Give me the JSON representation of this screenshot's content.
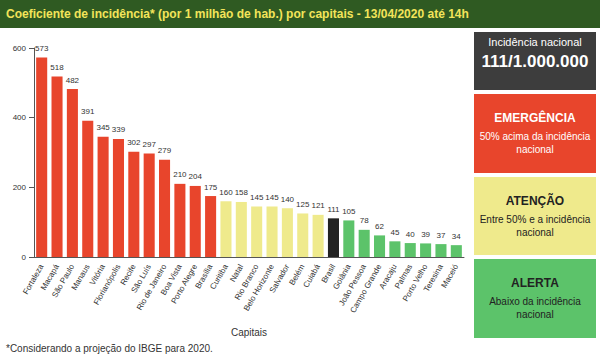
{
  "chart_data": {
    "type": "bar",
    "title": "Coeficiente de incidência* (por 1 milhão de hab.) por capitais - 13/04/2020 até 14h",
    "xlabel": "Capitais",
    "categories": [
      "Fortaleza",
      "Macapá",
      "São Paulo",
      "Manaus",
      "Vitória",
      "Florianópolis",
      "Recife",
      "São Luís",
      "Rio de Janeiro",
      "Boa Vista",
      "Porto Alegre",
      "Brasília",
      "Curitiba",
      "Natal",
      "Rio Branco",
      "Belo Horizonte",
      "Salvador",
      "Belém",
      "Cuiabá",
      "Brasil",
      "Goiânia",
      "João Pessoa",
      "Campo Grande",
      "Aracaju",
      "Palmas",
      "Porto Velho",
      "Teresina",
      "Maceió"
    ],
    "values": [
      573,
      518,
      482,
      391,
      345,
      339,
      302,
      297,
      279,
      210,
      204,
      175,
      160,
      158,
      145,
      145,
      140,
      125,
      121,
      111,
      105,
      78,
      62,
      45,
      40,
      39,
      37,
      34
    ],
    "colors": [
      "#e8452c",
      "#e8452c",
      "#e8452c",
      "#e8452c",
      "#e8452c",
      "#e8452c",
      "#e8452c",
      "#e8452c",
      "#e8452c",
      "#e8452c",
      "#e8452c",
      "#e8452c",
      "#efea8c",
      "#efea8c",
      "#efea8c",
      "#efea8c",
      "#efea8c",
      "#efea8c",
      "#efea8c",
      "#222222",
      "#5cc36a",
      "#5cc36a",
      "#5cc36a",
      "#5cc36a",
      "#5cc36a",
      "#5cc36a",
      "#5cc36a",
      "#5cc36a"
    ],
    "ylim": [
      0,
      600
    ],
    "yticks": [
      0,
      200,
      400,
      600
    ],
    "grid": false,
    "data_labels": true,
    "annotations": [
      "*Considerando a projeção do IBGE para 2020."
    ]
  },
  "side_panel": {
    "national": {
      "title": "Incidência nacional",
      "value": "111/1.000.000"
    },
    "levels": [
      {
        "title": "EMERGÊNCIA",
        "text": "50% acima da incidência nacional",
        "color": "#e8452c",
        "text_color": "#ffffff"
      },
      {
        "title": "ATENÇÃO",
        "text": "Entre 50% e a incidência nacional",
        "color": "#efea8c",
        "text_color": "#222222"
      },
      {
        "title": "ALERTA",
        "text": "Abaixo da incidência nacional",
        "color": "#5cc36a",
        "text_color": "#222222"
      }
    ]
  }
}
